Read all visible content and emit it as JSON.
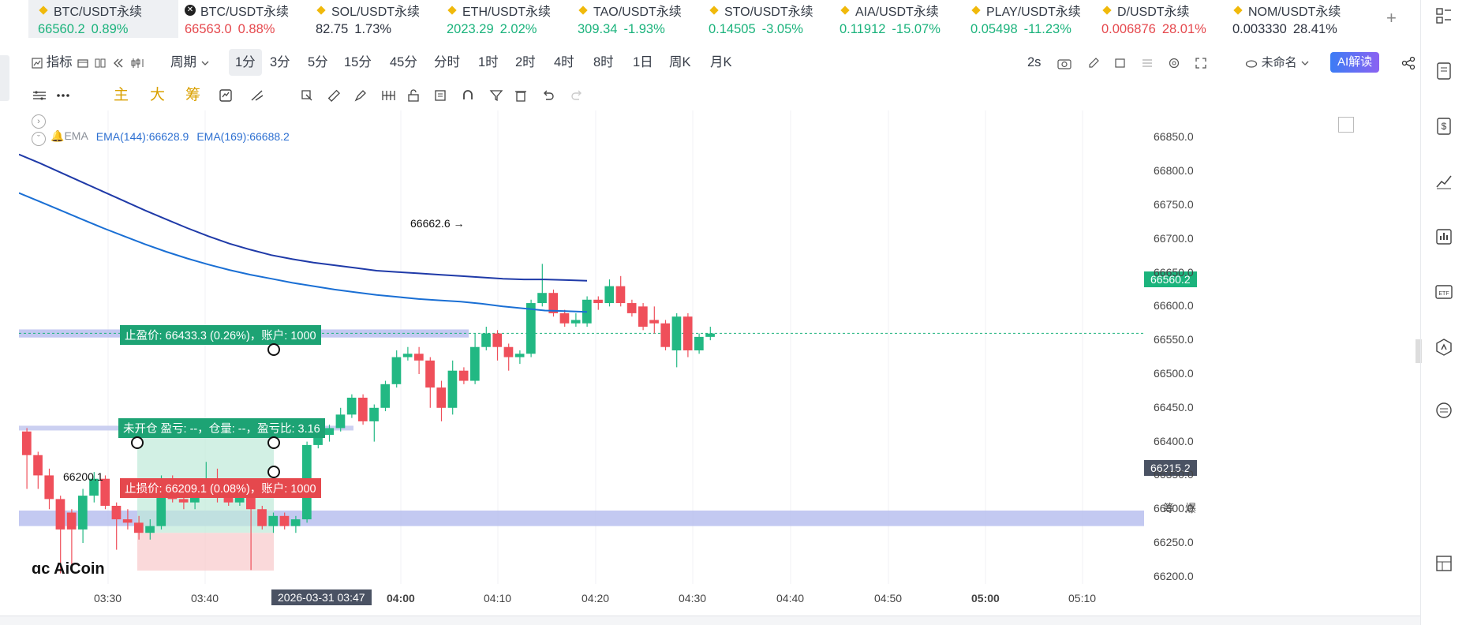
{
  "tickers": [
    {
      "name": "BTC/USDT永续",
      "price": "66560.2",
      "change": "0.89%",
      "color": "#1bb37c",
      "icon": "coin-icon",
      "active": true
    },
    {
      "name": "BTC/USDT永续",
      "price": "66563.0",
      "change": "0.88%",
      "color": "#e5484d",
      "icon": "exchange-x-icon"
    },
    {
      "name": "SOL/USDT永续",
      "price": "82.75",
      "change": "1.73%",
      "color": "#2d3340",
      "icon": "coin-icon"
    },
    {
      "name": "ETH/USDT永续",
      "price": "2023.29",
      "change": "2.02%",
      "color": "#1bb37c",
      "icon": "coin-icon"
    },
    {
      "name": "TAO/USDT永续",
      "price": "309.34",
      "change": "-1.93%",
      "color": "#1bb37c",
      "icon": "coin-icon"
    },
    {
      "name": "STO/USDT永续",
      "price": "0.14505",
      "change": "-3.05%",
      "color": "#1bb37c",
      "icon": "coin-icon"
    },
    {
      "name": "AIA/USDT永续",
      "price": "0.11912",
      "change": "-15.07%",
      "color": "#1bb37c",
      "icon": "coin-icon"
    },
    {
      "name": "PLAY/USDT永续",
      "price": "0.05498",
      "change": "-11.23%",
      "color": "#1bb37c",
      "icon": "coin-icon"
    },
    {
      "name": "D/USDT永续",
      "price": "0.006876",
      "change": "28.01%",
      "color": "#e5484d",
      "icon": "coin-icon"
    },
    {
      "name": "NOM/USDT永续",
      "price": "0.003330",
      "change": "28.41%",
      "color": "#2d3340",
      "icon": "coin-icon"
    }
  ],
  "toolbar": {
    "indicator": "指标",
    "period": "周期",
    "intervals": [
      "1分",
      "3分",
      "5分",
      "15分",
      "45分",
      "分时",
      "1时",
      "2时",
      "4时",
      "8时",
      "1日",
      "周K",
      "月K"
    ],
    "selected_interval": "1分",
    "refresh": "2s",
    "layout_name": "未命名",
    "ai_button": "AI解读"
  },
  "toolbar2": {
    "main": "主",
    "big": "大",
    "chips": "筹"
  },
  "chart_data": {
    "type": "candlestick",
    "indicators_label": "EMA",
    "ema144_label": "EMA(144):66628.9",
    "ema169_label": "EMA(169):66688.2",
    "y_ticks": [
      "66850.0",
      "66800.0",
      "66750.0",
      "66700.0",
      "66650.0",
      "66600.0",
      "66550.0",
      "66500.0",
      "66450.0",
      "66400.0",
      "66350.0",
      "66300.0",
      "66250.0",
      "66200.0"
    ],
    "x_ticks": [
      "03:30",
      "03:40",
      "04:00",
      "04:10",
      "04:20",
      "04:30",
      "04:40",
      "04:50",
      "05:00",
      "05:10"
    ],
    "ylim": [
      66180,
      66890
    ],
    "current_price": "66560.2",
    "low_price_tag": "66215.2",
    "high_marker": "66662.6",
    "low_marker": "66200.1",
    "crosshair_time": "2026-03-31 03:47",
    "candles": [
      {
        "o": 66415,
        "c": 66380,
        "h": 66420,
        "l": 66330
      },
      {
        "o": 66380,
        "c": 66350,
        "h": 66385,
        "l": 66330
      },
      {
        "o": 66350,
        "c": 66315,
        "h": 66360,
        "l": 66300
      },
      {
        "o": 66315,
        "c": 66270,
        "h": 66320,
        "l": 66205
      },
      {
        "o": 66295,
        "c": 66270,
        "h": 66300,
        "l": 66210
      },
      {
        "o": 66270,
        "c": 66320,
        "h": 66330,
        "l": 66250
      },
      {
        "o": 66320,
        "c": 66345,
        "h": 66355,
        "l": 66310
      },
      {
        "o": 66345,
        "c": 66305,
        "h": 66350,
        "l": 66300
      },
      {
        "o": 66305,
        "c": 66285,
        "h": 66310,
        "l": 66240
      },
      {
        "o": 66285,
        "c": 66280,
        "h": 66300,
        "l": 66270
      },
      {
        "o": 66280,
        "c": 66265,
        "h": 66290,
        "l": 66255
      },
      {
        "o": 66265,
        "c": 66275,
        "h": 66285,
        "l": 66255
      },
      {
        "o": 66275,
        "c": 66345,
        "h": 66350,
        "l": 66270
      },
      {
        "o": 66340,
        "c": 66315,
        "h": 66350,
        "l": 66310
      },
      {
        "o": 66315,
        "c": 66310,
        "h": 66320,
        "l": 66300
      },
      {
        "o": 66310,
        "c": 66330,
        "h": 66340,
        "l": 66300
      },
      {
        "o": 66330,
        "c": 66345,
        "h": 66370,
        "l": 66320
      },
      {
        "o": 66345,
        "c": 66320,
        "h": 66360,
        "l": 66310
      },
      {
        "o": 66320,
        "c": 66310,
        "h": 66325,
        "l": 66305
      },
      {
        "o": 66310,
        "c": 66325,
        "h": 66335,
        "l": 66305
      },
      {
        "o": 66325,
        "c": 66300,
        "h": 66330,
        "l": 66210
      },
      {
        "o": 66300,
        "c": 66275,
        "h": 66305,
        "l": 66270
      },
      {
        "o": 66275,
        "c": 66290,
        "h": 66295,
        "l": 66265
      },
      {
        "o": 66290,
        "c": 66275,
        "h": 66295,
        "l": 66270
      },
      {
        "o": 66275,
        "c": 66285,
        "h": 66290,
        "l": 66265
      },
      {
        "o": 66285,
        "c": 66395,
        "h": 66400,
        "l": 66280
      },
      {
        "o": 66395,
        "c": 66410,
        "h": 66420,
        "l": 66390
      },
      {
        "o": 66410,
        "c": 66420,
        "h": 66425,
        "l": 66400
      },
      {
        "o": 66420,
        "c": 66440,
        "h": 66450,
        "l": 66415
      },
      {
        "o": 66440,
        "c": 66465,
        "h": 66470,
        "l": 66435
      },
      {
        "o": 66465,
        "c": 66430,
        "h": 66470,
        "l": 66425
      },
      {
        "o": 66430,
        "c": 66450,
        "h": 66455,
        "l": 66400
      },
      {
        "o": 66450,
        "c": 66485,
        "h": 66490,
        "l": 66445
      },
      {
        "o": 66485,
        "c": 66525,
        "h": 66535,
        "l": 66480
      },
      {
        "o": 66525,
        "c": 66530,
        "h": 66540,
        "l": 66520
      },
      {
        "o": 66530,
        "c": 66520,
        "h": 66540,
        "l": 66500
      },
      {
        "o": 66520,
        "c": 66480,
        "h": 66525,
        "l": 66450
      },
      {
        "o": 66480,
        "c": 66450,
        "h": 66490,
        "l": 66430
      },
      {
        "o": 66450,
        "c": 66505,
        "h": 66520,
        "l": 66440
      },
      {
        "o": 66505,
        "c": 66490,
        "h": 66510,
        "l": 66485
      },
      {
        "o": 66490,
        "c": 66540,
        "h": 66560,
        "l": 66485
      },
      {
        "o": 66540,
        "c": 66560,
        "h": 66570,
        "l": 66535
      },
      {
        "o": 66560,
        "c": 66540,
        "h": 66565,
        "l": 66520
      },
      {
        "o": 66540,
        "c": 66525,
        "h": 66545,
        "l": 66505
      },
      {
        "o": 66525,
        "c": 66530,
        "h": 66535,
        "l": 66515
      },
      {
        "o": 66530,
        "c": 66605,
        "h": 66610,
        "l": 66525
      },
      {
        "o": 66605,
        "c": 66620,
        "h": 66663,
        "l": 66600
      },
      {
        "o": 66620,
        "c": 66590,
        "h": 66625,
        "l": 66585
      },
      {
        "o": 66590,
        "c": 66575,
        "h": 66595,
        "l": 66570
      },
      {
        "o": 66575,
        "c": 66580,
        "h": 66590,
        "l": 66570
      },
      {
        "o": 66575,
        "c": 66610,
        "h": 66615,
        "l": 66570
      },
      {
        "o": 66610,
        "c": 66605,
        "h": 66615,
        "l": 66595
      },
      {
        "o": 66605,
        "c": 66630,
        "h": 66640,
        "l": 66600
      },
      {
        "o": 66630,
        "c": 66605,
        "h": 66645,
        "l": 66600
      },
      {
        "o": 66605,
        "c": 66590,
        "h": 66610,
        "l": 66585
      },
      {
        "o": 66600,
        "c": 66570,
        "h": 66605,
        "l": 66565
      },
      {
        "o": 66580,
        "c": 66575,
        "h": 66600,
        "l": 66560
      },
      {
        "o": 66575,
        "c": 66540,
        "h": 66580,
        "l": 66535
      },
      {
        "o": 66535,
        "c": 66585,
        "h": 66590,
        "l": 66510
      },
      {
        "o": 66585,
        "c": 66535,
        "h": 66590,
        "l": 66525
      },
      {
        "o": 66535,
        "c": 66555,
        "h": 66560,
        "l": 66530
      },
      {
        "o": 66555,
        "c": 66560,
        "h": 66570,
        "l": 66550
      }
    ],
    "ema144": [
      66768,
      66755,
      66742,
      66729,
      66716,
      66704,
      66692,
      66681,
      66671,
      66662,
      66654,
      66647,
      66641,
      66635,
      66630,
      66625,
      66621,
      66617,
      66614,
      66611,
      66609,
      66607,
      66604,
      66600,
      66597,
      66594,
      66593,
      66592
    ],
    "ema169": [
      66825,
      66812,
      66798,
      66784,
      66770,
      66756,
      66742,
      66729,
      66716,
      66704,
      66693,
      66684,
      66676,
      66670,
      66665,
      66661,
      66657,
      66653,
      66651,
      66649,
      66647,
      66645,
      66643,
      66641,
      66640,
      66640,
      66639,
      66638
    ],
    "zones": [
      {
        "from": 66275,
        "to": 66298
      },
      {
        "from": 66554,
        "to": 66566
      }
    ],
    "long_position": {
      "take_profit": "止盈价: 66433.3 (0.26%)，账户: 1000",
      "stop_loss": "止损价: 66209.1 (0.08%)，账户: 1000",
      "status": "未开仓 盈亏: --，仓量: --，盈亏比: 3.16",
      "entry": 66265,
      "tp": 66433.3,
      "sl": 66209.1
    }
  },
  "logo": "AiCoin",
  "bottom": {
    "label": ""
  }
}
